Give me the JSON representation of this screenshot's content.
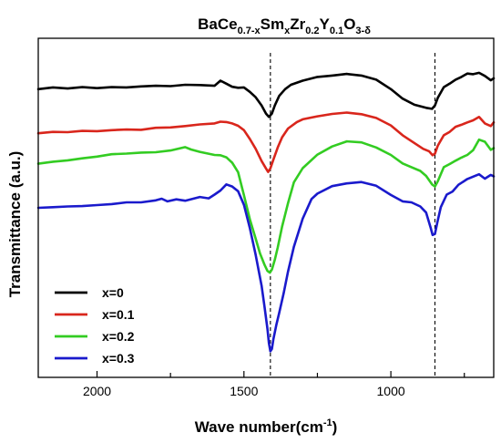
{
  "chart_data": {
    "type": "line",
    "title": {
      "parts": [
        {
          "text": "BaCe",
          "sub": false
        },
        {
          "text": "0.7-x",
          "sub": true
        },
        {
          "text": "Sm",
          "sub": false
        },
        {
          "text": "x",
          "sub": true
        },
        {
          "text": "Zr",
          "sub": false
        },
        {
          "text": "0.2",
          "sub": true
        },
        {
          "text": "Y",
          "sub": false
        },
        {
          "text": "0.1",
          "sub": true
        },
        {
          "text": "O",
          "sub": false
        },
        {
          "text": "3-δ",
          "sub": true
        }
      ]
    },
    "xlabel": {
      "base": "Wave number(cm",
      "sup": "-1",
      "close": ")"
    },
    "ylabel": "Transmittance (a.u.)",
    "xlim": [
      2200,
      650
    ],
    "ylim": [
      0,
      100
    ],
    "xticks": [
      2000,
      1500,
      1000
    ],
    "reference_lines": [
      1410,
      850
    ],
    "legend": {
      "placement": "bottom-left"
    },
    "series": [
      {
        "name": "x=0",
        "color": "#000000",
        "points": [
          [
            2200,
            85.0
          ],
          [
            2150,
            85.5
          ],
          [
            2100,
            85.2
          ],
          [
            2050,
            85.6
          ],
          [
            2000,
            85.3
          ],
          [
            1950,
            85.6
          ],
          [
            1900,
            85.5
          ],
          [
            1850,
            85.8
          ],
          [
            1800,
            86.0
          ],
          [
            1750,
            85.9
          ],
          [
            1700,
            86.3
          ],
          [
            1650,
            86.2
          ],
          [
            1600,
            86.0
          ],
          [
            1580,
            87.5
          ],
          [
            1560,
            86.6
          ],
          [
            1540,
            85.7
          ],
          [
            1520,
            85.4
          ],
          [
            1500,
            85.5
          ],
          [
            1480,
            84.2
          ],
          [
            1460,
            82.6
          ],
          [
            1440,
            80.2
          ],
          [
            1425,
            77.8
          ],
          [
            1415,
            76.8
          ],
          [
            1405,
            77.8
          ],
          [
            1395,
            80.2
          ],
          [
            1380,
            83.0
          ],
          [
            1360,
            85.0
          ],
          [
            1340,
            86.3
          ],
          [
            1300,
            87.5
          ],
          [
            1250,
            88.6
          ],
          [
            1200,
            89.0
          ],
          [
            1150,
            89.5
          ],
          [
            1100,
            89.0
          ],
          [
            1050,
            87.8
          ],
          [
            1000,
            85.0
          ],
          [
            960,
            82.2
          ],
          [
            920,
            80.4
          ],
          [
            880,
            79.5
          ],
          [
            860,
            79.2
          ],
          [
            850,
            80.2
          ],
          [
            840,
            82.5
          ],
          [
            820,
            85.6
          ],
          [
            800,
            86.6
          ],
          [
            780,
            87.8
          ],
          [
            760,
            88.6
          ],
          [
            740,
            89.6
          ],
          [
            720,
            89.4
          ],
          [
            700,
            89.8
          ],
          [
            680,
            88.9
          ],
          [
            660,
            87.6
          ],
          [
            650,
            88.2
          ]
        ]
      },
      {
        "name": "x=0.1",
        "color": "#d9261c",
        "points": [
          [
            2200,
            72.0
          ],
          [
            2150,
            72.4
          ],
          [
            2100,
            72.3
          ],
          [
            2050,
            72.7
          ],
          [
            2000,
            72.6
          ],
          [
            1950,
            72.9
          ],
          [
            1900,
            73.1
          ],
          [
            1850,
            73.0
          ],
          [
            1800,
            73.6
          ],
          [
            1750,
            73.7
          ],
          [
            1700,
            74.1
          ],
          [
            1650,
            74.6
          ],
          [
            1600,
            74.9
          ],
          [
            1580,
            75.4
          ],
          [
            1560,
            75.3
          ],
          [
            1540,
            74.9
          ],
          [
            1520,
            74.2
          ],
          [
            1500,
            72.9
          ],
          [
            1480,
            70.3
          ],
          [
            1460,
            67.4
          ],
          [
            1440,
            63.8
          ],
          [
            1425,
            61.6
          ],
          [
            1418,
            60.6
          ],
          [
            1410,
            61.6
          ],
          [
            1400,
            64.2
          ],
          [
            1385,
            67.8
          ],
          [
            1370,
            70.8
          ],
          [
            1350,
            73.4
          ],
          [
            1320,
            75.3
          ],
          [
            1300,
            76.1
          ],
          [
            1250,
            77.0
          ],
          [
            1200,
            77.7
          ],
          [
            1150,
            78.1
          ],
          [
            1100,
            77.6
          ],
          [
            1050,
            76.5
          ],
          [
            1000,
            74.3
          ],
          [
            960,
            71.4
          ],
          [
            920,
            69.1
          ],
          [
            890,
            67.4
          ],
          [
            870,
            66.7
          ],
          [
            858,
            65.5
          ],
          [
            850,
            66.0
          ],
          [
            840,
            68.4
          ],
          [
            820,
            71.4
          ],
          [
            800,
            72.4
          ],
          [
            780,
            73.9
          ],
          [
            760,
            74.5
          ],
          [
            740,
            75.2
          ],
          [
            720,
            75.8
          ],
          [
            700,
            76.8
          ],
          [
            680,
            74.9
          ],
          [
            660,
            74.1
          ],
          [
            650,
            75.2
          ]
        ]
      },
      {
        "name": "x=0.2",
        "color": "#33cc22",
        "points": [
          [
            2200,
            63.0
          ],
          [
            2150,
            63.6
          ],
          [
            2100,
            64.0
          ],
          [
            2050,
            64.6
          ],
          [
            2000,
            65.1
          ],
          [
            1950,
            65.8
          ],
          [
            1900,
            66.0
          ],
          [
            1850,
            66.3
          ],
          [
            1800,
            66.4
          ],
          [
            1750,
            66.9
          ],
          [
            1700,
            67.9
          ],
          [
            1680,
            67.2
          ],
          [
            1650,
            66.5
          ],
          [
            1600,
            65.6
          ],
          [
            1580,
            65.5
          ],
          [
            1560,
            64.9
          ],
          [
            1540,
            63.3
          ],
          [
            1520,
            60.5
          ],
          [
            1500,
            53.7
          ],
          [
            1480,
            46.6
          ],
          [
            1460,
            40.9
          ],
          [
            1445,
            36.5
          ],
          [
            1430,
            33.2
          ],
          [
            1420,
            31.4
          ],
          [
            1412,
            30.9
          ],
          [
            1405,
            31.8
          ],
          [
            1395,
            34.7
          ],
          [
            1385,
            38.3
          ],
          [
            1370,
            44.5
          ],
          [
            1350,
            51.4
          ],
          [
            1330,
            57.5
          ],
          [
            1300,
            61.7
          ],
          [
            1250,
            65.7
          ],
          [
            1200,
            68.1
          ],
          [
            1150,
            69.6
          ],
          [
            1100,
            69.3
          ],
          [
            1050,
            67.8
          ],
          [
            1000,
            65.6
          ],
          [
            960,
            63.1
          ],
          [
            930,
            62.0
          ],
          [
            900,
            60.9
          ],
          [
            880,
            59.4
          ],
          [
            860,
            56.9
          ],
          [
            850,
            56.3
          ],
          [
            840,
            57.9
          ],
          [
            820,
            62.0
          ],
          [
            800,
            62.9
          ],
          [
            780,
            63.9
          ],
          [
            760,
            64.8
          ],
          [
            740,
            65.6
          ],
          [
            720,
            67.0
          ],
          [
            700,
            70.1
          ],
          [
            680,
            69.5
          ],
          [
            660,
            67.1
          ],
          [
            650,
            67.6
          ]
        ]
      },
      {
        "name": "x=0.3",
        "color": "#1a1acc",
        "points": [
          [
            2200,
            50.0
          ],
          [
            2150,
            50.2
          ],
          [
            2100,
            50.4
          ],
          [
            2050,
            50.5
          ],
          [
            2000,
            50.8
          ],
          [
            1950,
            51.1
          ],
          [
            1900,
            51.6
          ],
          [
            1850,
            51.6
          ],
          [
            1800,
            52.2
          ],
          [
            1780,
            52.7
          ],
          [
            1760,
            51.9
          ],
          [
            1730,
            52.5
          ],
          [
            1700,
            52.1
          ],
          [
            1650,
            53.2
          ],
          [
            1620,
            52.8
          ],
          [
            1600,
            53.9
          ],
          [
            1580,
            55.1
          ],
          [
            1560,
            56.9
          ],
          [
            1540,
            56.3
          ],
          [
            1520,
            54.9
          ],
          [
            1500,
            50.9
          ],
          [
            1480,
            44.0
          ],
          [
            1460,
            36.1
          ],
          [
            1440,
            27.0
          ],
          [
            1430,
            20.8
          ],
          [
            1420,
            14.3
          ],
          [
            1415,
            10.1
          ],
          [
            1410,
            7.7
          ],
          [
            1405,
            8.4
          ],
          [
            1400,
            11.2
          ],
          [
            1390,
            15.4
          ],
          [
            1380,
            19.0
          ],
          [
            1365,
            24.8
          ],
          [
            1350,
            31.2
          ],
          [
            1330,
            38.5
          ],
          [
            1300,
            46.8
          ],
          [
            1270,
            52.6
          ],
          [
            1250,
            54.2
          ],
          [
            1200,
            56.4
          ],
          [
            1150,
            57.2
          ],
          [
            1100,
            57.6
          ],
          [
            1050,
            56.5
          ],
          [
            1000,
            53.8
          ],
          [
            960,
            51.9
          ],
          [
            930,
            51.6
          ],
          [
            900,
            50.4
          ],
          [
            880,
            48.6
          ],
          [
            865,
            44.3
          ],
          [
            858,
            42.0
          ],
          [
            850,
            42.3
          ],
          [
            842,
            45.7
          ],
          [
            830,
            50.2
          ],
          [
            810,
            53.9
          ],
          [
            790,
            54.8
          ],
          [
            770,
            56.8
          ],
          [
            740,
            58.5
          ],
          [
            720,
            59.2
          ],
          [
            700,
            59.9
          ],
          [
            680,
            58.6
          ],
          [
            660,
            59.7
          ],
          [
            650,
            59.3
          ]
        ]
      }
    ]
  }
}
